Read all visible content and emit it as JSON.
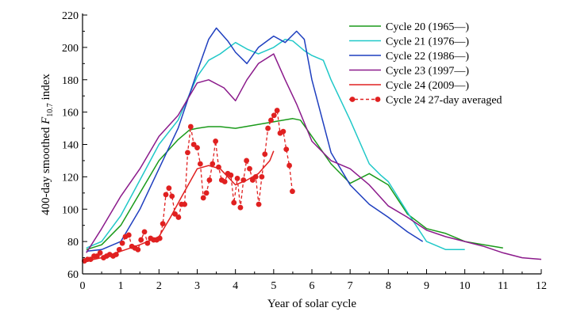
{
  "chart_data": {
    "type": "line",
    "xlabel": "Year of solar cycle",
    "ylabel_prefix": "400-day smoothed ",
    "ylabel_var": "F",
    "ylabel_sub": "10.7",
    "ylabel_suffix": " index",
    "xlim": [
      0,
      12
    ],
    "ylim": [
      60,
      220
    ],
    "xticks": [
      0,
      1,
      2,
      3,
      4,
      5,
      6,
      7,
      8,
      9,
      10,
      11,
      12
    ],
    "yticks": [
      60,
      80,
      100,
      120,
      140,
      160,
      180,
      200,
      220
    ],
    "grid": false,
    "legend_position": "top-right",
    "series": [
      {
        "name": "Cycle 20 (1965—)",
        "color": "#1a9a1a",
        "style": "solid",
        "x": [
          0.1,
          0.5,
          1.0,
          1.5,
          2.0,
          2.5,
          2.8,
          3.0,
          3.3,
          3.6,
          4.0,
          4.5,
          5.0,
          5.5,
          5.7,
          6.0,
          6.5,
          7.0,
          7.5,
          8.0,
          8.5,
          9.0,
          9.5,
          10.0,
          10.5,
          11.0
        ],
        "y": [
          75,
          78,
          90,
          110,
          130,
          143,
          149,
          150,
          151,
          151,
          150,
          152,
          154,
          156,
          155,
          145,
          128,
          116,
          122,
          115,
          97,
          88,
          85,
          80,
          78,
          76
        ]
      },
      {
        "name": "Cycle 21 (1976—)",
        "color": "#20c8c8",
        "style": "solid",
        "x": [
          0.1,
          0.5,
          1.0,
          1.5,
          2.0,
          2.5,
          3.0,
          3.3,
          3.6,
          4.0,
          4.3,
          4.6,
          5.0,
          5.3,
          5.5,
          5.8,
          6.0,
          6.3,
          6.5,
          7.0,
          7.5,
          7.8,
          8.0,
          8.5,
          9.0,
          9.5,
          10.0
        ],
        "y": [
          76,
          80,
          96,
          118,
          140,
          155,
          182,
          192,
          196,
          203,
          199,
          196,
          200,
          205,
          204,
          198,
          195,
          192,
          180,
          155,
          128,
          121,
          117,
          98,
          80,
          75,
          75
        ]
      },
      {
        "name": "Cycle 22 (1986—)",
        "color": "#1f3fbf",
        "style": "solid",
        "x": [
          0.1,
          0.5,
          1.0,
          1.5,
          2.0,
          2.5,
          3.0,
          3.3,
          3.5,
          3.8,
          4.0,
          4.3,
          4.6,
          5.0,
          5.3,
          5.6,
          5.8,
          6.0,
          6.5,
          7.0,
          7.5,
          8.0,
          8.5,
          8.9
        ],
        "y": [
          74,
          75,
          80,
          100,
          125,
          150,
          185,
          205,
          212,
          204,
          197,
          190,
          200,
          207,
          203,
          210,
          205,
          180,
          135,
          115,
          103,
          95,
          86,
          80
        ]
      },
      {
        "name": "Cycle 23 (1997—)",
        "color": "#8b1a8b",
        "style": "solid",
        "x": [
          0.1,
          0.5,
          1.0,
          1.5,
          2.0,
          2.5,
          3.0,
          3.3,
          3.7,
          4.0,
          4.3,
          4.6,
          5.0,
          5.3,
          5.6,
          6.0,
          6.5,
          7.0,
          7.5,
          8.0,
          8.5,
          9.0,
          9.5,
          10.0,
          10.5,
          11.0,
          11.5,
          12.0
        ],
        "y": [
          73,
          88,
          108,
          125,
          145,
          158,
          178,
          180,
          175,
          167,
          180,
          190,
          196,
          180,
          165,
          142,
          130,
          125,
          115,
          102,
          95,
          87,
          83,
          80,
          77,
          73,
          70,
          69
        ]
      },
      {
        "name": "Cycle 24 (2009—)",
        "color": "#e02020",
        "style": "solid",
        "x": [
          0.1,
          0.5,
          1.0,
          1.5,
          2.0,
          2.3,
          2.6,
          3.0,
          3.3,
          3.6,
          4.0,
          4.3,
          4.6,
          4.9,
          5.0
        ],
        "y": [
          68,
          70,
          74,
          78,
          83,
          95,
          108,
          125,
          127,
          125,
          115,
          118,
          122,
          130,
          136
        ]
      },
      {
        "name": "Cycle 24  27-day averaged",
        "color": "#e02020",
        "style": "dashed-markers",
        "x": [
          0.05,
          0.13,
          0.21,
          0.3,
          0.38,
          0.46,
          0.55,
          0.63,
          0.71,
          0.8,
          0.88,
          0.96,
          1.04,
          1.12,
          1.21,
          1.29,
          1.37,
          1.45,
          1.53,
          1.62,
          1.7,
          1.78,
          1.86,
          1.94,
          2.02,
          2.1,
          2.18,
          2.26,
          2.34,
          2.42,
          2.51,
          2.59,
          2.67,
          2.75,
          2.83,
          2.91,
          3.0,
          3.08,
          3.16,
          3.24,
          3.32,
          3.4,
          3.48,
          3.56,
          3.64,
          3.72,
          3.8,
          3.88,
          3.96,
          4.05,
          4.13,
          4.21,
          4.29,
          4.37,
          4.45,
          4.53,
          4.61,
          4.69,
          4.77,
          4.85,
          4.93,
          5.01,
          5.09,
          5.17,
          5.25,
          5.33,
          5.41,
          5.49
        ],
        "y": [
          68,
          69,
          69,
          71,
          71,
          73,
          70,
          71,
          72,
          71,
          72,
          75,
          79,
          83,
          84,
          77,
          76,
          75,
          81,
          86,
          79,
          82,
          81,
          81,
          82,
          91,
          109,
          113,
          108,
          97,
          95,
          103,
          103,
          135,
          151,
          140,
          138,
          128,
          107,
          110,
          118,
          128,
          142,
          126,
          118,
          117,
          122,
          121,
          104,
          119,
          101,
          118,
          130,
          125,
          118,
          120,
          103,
          120,
          134,
          150,
          155,
          158,
          161,
          147,
          148,
          137,
          127,
          111
        ]
      }
    ]
  }
}
